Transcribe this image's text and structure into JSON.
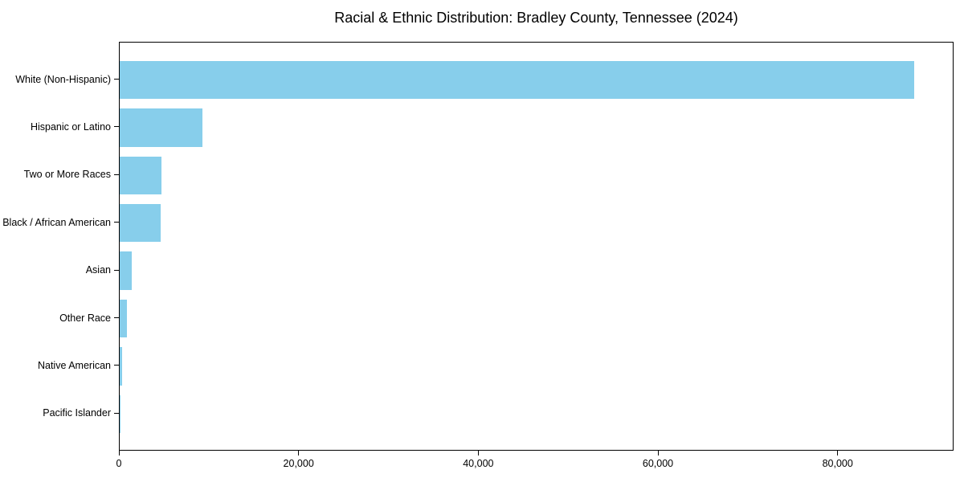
{
  "figure": {
    "background": "#ffffff",
    "text_color": "#000000",
    "frame_color": "#000000"
  },
  "chart_data": {
    "type": "bar",
    "orientation": "horizontal",
    "title": "Racial & Ethnic Distribution: Bradley County, Tennessee (2024)",
    "categories": [
      "White (Non-Hispanic)",
      "Hispanic or Latino",
      "Two or More Races",
      "Black / African American",
      "Asian",
      "Other Race",
      "Native American",
      "Pacific Islander"
    ],
    "values": [
      88400,
      9200,
      4650,
      4550,
      1300,
      780,
      250,
      80
    ],
    "bar_color": "#87CEEB",
    "xlabel": "",
    "ylabel": "",
    "xlim": [
      0,
      92900
    ],
    "x_ticks": [
      0,
      20000,
      40000,
      60000,
      80000
    ],
    "x_tick_labels": [
      "0",
      "20,000",
      "40,000",
      "60,000",
      "80,000"
    ],
    "grid": false,
    "legend": "none"
  }
}
